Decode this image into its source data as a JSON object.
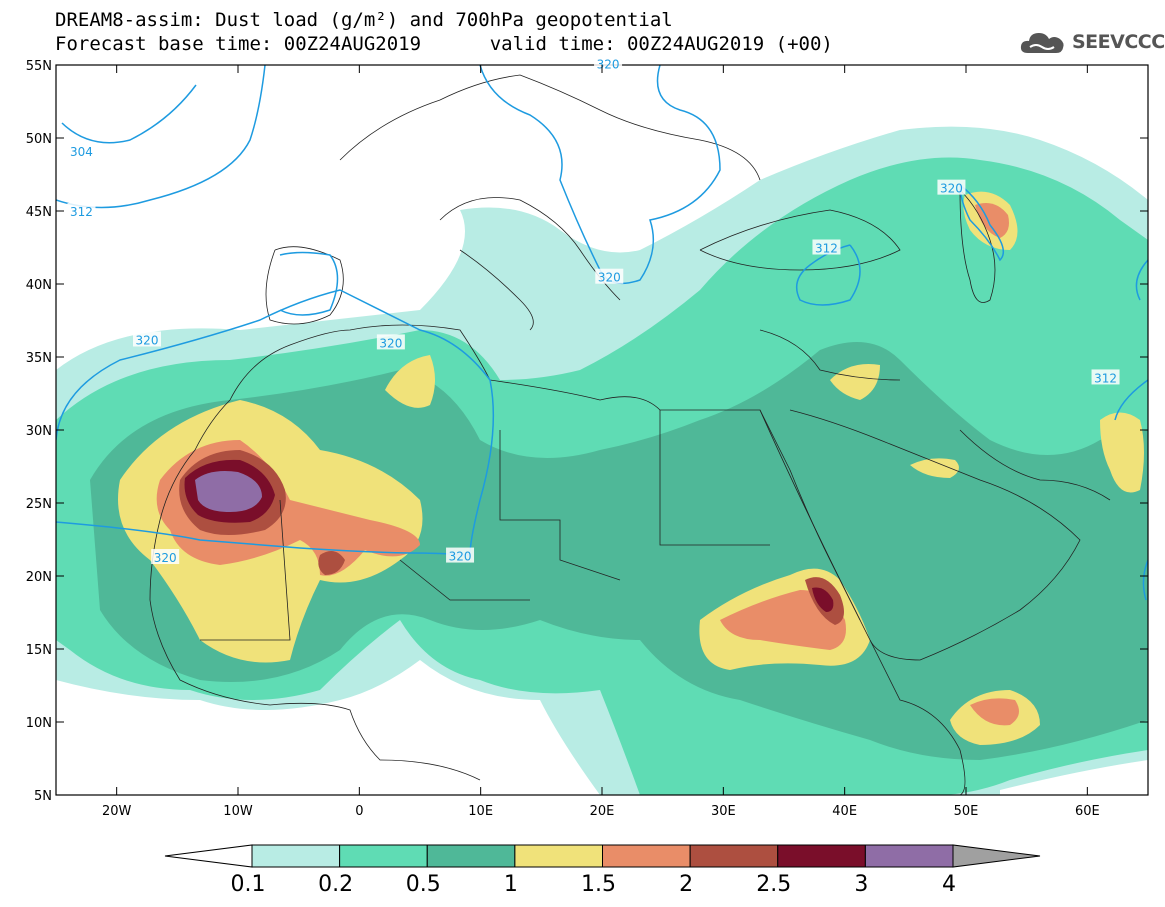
{
  "title_line1": "DREAM8-assim: Dust load (g/m²) and 700hPa geopotential",
  "title_line2_left": "Forecast base time: 00Z24AUG2019",
  "title_line2_right": "valid time: 00Z24AUG2019 (+00)",
  "logo_text": "SEEVCCC",
  "map": {
    "lon_range": [
      -25,
      65
    ],
    "lat_range": [
      5,
      55
    ],
    "lat_ticks": [
      {
        "value": 55,
        "label": "55N"
      },
      {
        "value": 50,
        "label": "50N"
      },
      {
        "value": 45,
        "label": "45N"
      },
      {
        "value": 40,
        "label": "40N"
      },
      {
        "value": 35,
        "label": "35N"
      },
      {
        "value": 30,
        "label": "30N"
      },
      {
        "value": 25,
        "label": "25N"
      },
      {
        "value": 20,
        "label": "20N"
      },
      {
        "value": 15,
        "label": "15N"
      },
      {
        "value": 10,
        "label": "10N"
      },
      {
        "value": 5,
        "label": "5N"
      }
    ],
    "lon_ticks": [
      {
        "value": -20,
        "label": "20W"
      },
      {
        "value": -10,
        "label": "10W"
      },
      {
        "value": 0,
        "label": "0"
      },
      {
        "value": 10,
        "label": "10E"
      },
      {
        "value": 20,
        "label": "20E"
      },
      {
        "value": 30,
        "label": "30E"
      },
      {
        "value": 40,
        "label": "40E"
      },
      {
        "value": 50,
        "label": "50E"
      },
      {
        "value": 60,
        "label": "60E"
      }
    ],
    "contour_labels": [
      {
        "text": "304",
        "lon": -22.9,
        "lat": 49.1
      },
      {
        "text": "312",
        "lon": -22.9,
        "lat": 45.0
      },
      {
        "text": "320",
        "lon": -17.5,
        "lat": 36.2
      },
      {
        "text": "320",
        "lon": 2.6,
        "lat": 36.0
      },
      {
        "text": "320",
        "lon": 20.6,
        "lat": 40.5
      },
      {
        "text": "320",
        "lon": 48.8,
        "lat": 46.6
      },
      {
        "text": "312",
        "lon": 38.5,
        "lat": 42.5
      },
      {
        "text": "312",
        "lon": 61.5,
        "lat": 33.6
      },
      {
        "text": "320",
        "lon": -16.0,
        "lat": 21.3
      },
      {
        "text": "320",
        "lon": 8.3,
        "lat": 21.4
      },
      {
        "text": "320",
        "lon": 20.5,
        "lat": 55.1
      }
    ]
  },
  "colorbar": {
    "colors": [
      "#b8ece4",
      "#5fdcb4",
      "#4fb898",
      "#f0e27a",
      "#e98d68",
      "#ad4f40",
      "#7a0e2a",
      "#8f6da6",
      "#a0a0a0"
    ],
    "labels": [
      "0.1",
      "0.2",
      "0.5",
      "1",
      "1.5",
      "2",
      "2.5",
      "3",
      "4"
    ]
  }
}
